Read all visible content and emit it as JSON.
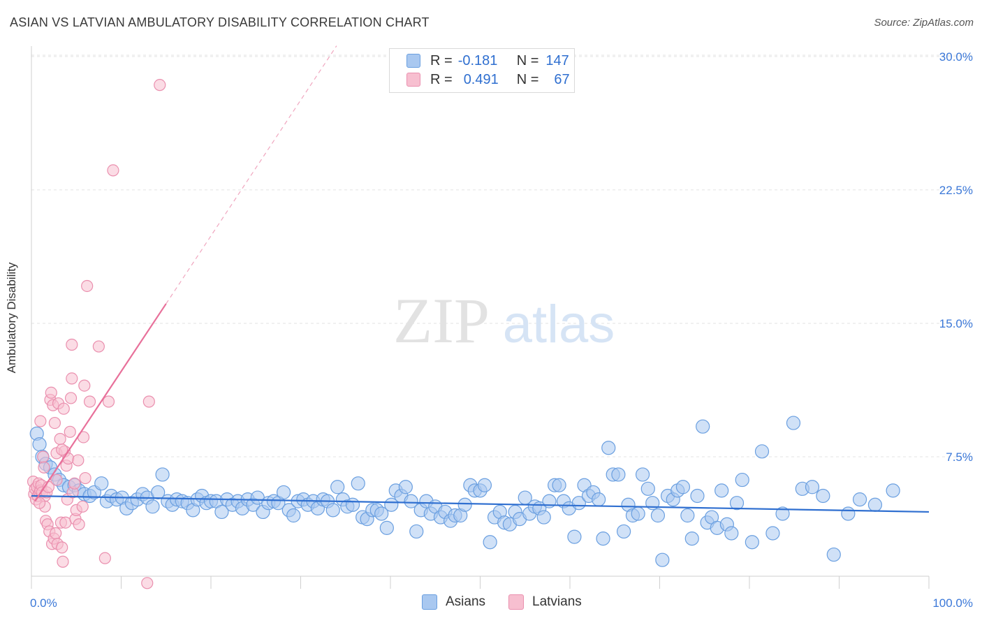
{
  "title": "ASIAN VS LATVIAN AMBULATORY DISABILITY CORRELATION CHART",
  "source": "Source: ZipAtlas.com",
  "watermark": {
    "zip": "ZIP",
    "atlas": "atlas"
  },
  "legend": {
    "rows": [
      {
        "r_label": "R =",
        "r_value": "-0.181",
        "n_label": "N =",
        "n_value": "147",
        "color": "#a9c8f0",
        "border": "#6a9fe0"
      },
      {
        "r_label": "R =",
        "r_value": "0.491",
        "n_label": "N =",
        "n_value": "67",
        "color": "#f7bfd0",
        "border": "#ea8fae"
      }
    ]
  },
  "bottom_legend": [
    {
      "label": "Asians",
      "color": "#a9c8f0",
      "border": "#6a9fe0"
    },
    {
      "label": "Latvians",
      "color": "#f7bfd0",
      "border": "#ea8fae"
    }
  ],
  "chart_data": {
    "type": "scatter",
    "title": "ASIAN VS LATVIAN AMBULATORY DISABILITY CORRELATION CHART",
    "xlabel": "",
    "ylabel": "Ambulatory Disability",
    "xlim": [
      0,
      100
    ],
    "ylim": [
      0,
      31
    ],
    "x_tick_labels": [
      "0.0%",
      "100.0%"
    ],
    "y_ticks": [
      7.5,
      15.0,
      22.5,
      30.0
    ],
    "y_tick_labels": [
      "7.5%",
      "15.0%",
      "22.5%",
      "30.0%"
    ],
    "grid": true,
    "legend_position": "top-center",
    "series": [
      {
        "name": "Asians",
        "color": "#6a9fe0",
        "fill": "#a9c8f0",
        "trend": {
          "x": [
            0,
            100
          ],
          "y": [
            5.3,
            4.4
          ]
        },
        "points": [
          [
            0.6,
            8.8
          ],
          [
            0.9,
            8.2
          ],
          [
            1.2,
            7.5
          ],
          [
            1.6,
            7.1
          ],
          [
            2.1,
            6.9
          ],
          [
            2.6,
            6.5
          ],
          [
            3.1,
            6.2
          ],
          [
            3.6,
            5.9
          ],
          [
            4.2,
            5.8
          ],
          [
            4.8,
            5.9
          ],
          [
            5.3,
            5.6
          ],
          [
            5.9,
            5.4
          ],
          [
            6.5,
            5.3
          ],
          [
            7.0,
            5.5
          ],
          [
            7.8,
            6.0
          ],
          [
            8.4,
            5.0
          ],
          [
            8.9,
            5.3
          ],
          [
            9.5,
            5.1
          ],
          [
            10.1,
            5.2
          ],
          [
            10.6,
            4.6
          ],
          [
            11.2,
            4.9
          ],
          [
            11.8,
            5.1
          ],
          [
            12.4,
            5.4
          ],
          [
            12.9,
            5.2
          ],
          [
            13.5,
            4.7
          ],
          [
            14.1,
            5.5
          ],
          [
            14.6,
            6.5
          ],
          [
            15.2,
            5.0
          ],
          [
            15.7,
            4.8
          ],
          [
            16.2,
            5.1
          ],
          [
            16.8,
            5.0
          ],
          [
            17.4,
            4.9
          ],
          [
            18.0,
            4.5
          ],
          [
            18.5,
            5.1
          ],
          [
            19.0,
            5.3
          ],
          [
            19.5,
            4.9
          ],
          [
            20.0,
            5.0
          ],
          [
            20.6,
            5.0
          ],
          [
            21.2,
            4.4
          ],
          [
            21.8,
            5.1
          ],
          [
            22.4,
            4.8
          ],
          [
            23.0,
            5.0
          ],
          [
            23.5,
            4.6
          ],
          [
            24.1,
            5.1
          ],
          [
            24.7,
            4.8
          ],
          [
            25.2,
            5.2
          ],
          [
            25.8,
            4.4
          ],
          [
            26.4,
            4.9
          ],
          [
            27.0,
            5.0
          ],
          [
            27.5,
            4.9
          ],
          [
            28.1,
            5.5
          ],
          [
            28.7,
            4.5
          ],
          [
            29.2,
            4.2
          ],
          [
            29.7,
            5.0
          ],
          [
            30.3,
            5.1
          ],
          [
            30.8,
            4.8
          ],
          [
            31.4,
            5.0
          ],
          [
            31.9,
            4.6
          ],
          [
            32.5,
            5.1
          ],
          [
            33.0,
            5.0
          ],
          [
            33.6,
            4.5
          ],
          [
            34.1,
            5.8
          ],
          [
            34.7,
            5.1
          ],
          [
            35.2,
            4.7
          ],
          [
            35.8,
            4.8
          ],
          [
            36.4,
            6.0
          ],
          [
            36.9,
            4.1
          ],
          [
            37.4,
            4.0
          ],
          [
            38.0,
            4.5
          ],
          [
            38.5,
            4.5
          ],
          [
            39.0,
            4.3
          ],
          [
            39.6,
            3.5
          ],
          [
            40.1,
            4.8
          ],
          [
            40.6,
            5.6
          ],
          [
            41.2,
            5.3
          ],
          [
            41.7,
            5.8
          ],
          [
            42.3,
            5.0
          ],
          [
            42.9,
            3.3
          ],
          [
            43.4,
            4.5
          ],
          [
            44.0,
            5.0
          ],
          [
            44.5,
            4.3
          ],
          [
            45.0,
            4.7
          ],
          [
            45.6,
            4.1
          ],
          [
            46.1,
            4.4
          ],
          [
            46.7,
            3.9
          ],
          [
            47.2,
            4.2
          ],
          [
            47.8,
            4.2
          ],
          [
            48.3,
            4.8
          ],
          [
            48.9,
            5.9
          ],
          [
            49.4,
            5.6
          ],
          [
            50.0,
            5.6
          ],
          [
            50.5,
            5.9
          ],
          [
            51.1,
            2.7
          ],
          [
            51.6,
            4.1
          ],
          [
            52.2,
            4.4
          ],
          [
            52.7,
            3.8
          ],
          [
            53.3,
            3.7
          ],
          [
            53.9,
            4.4
          ],
          [
            54.4,
            4.0
          ],
          [
            55.0,
            5.2
          ],
          [
            55.5,
            4.3
          ],
          [
            56.1,
            4.7
          ],
          [
            56.6,
            4.6
          ],
          [
            57.1,
            4.1
          ],
          [
            57.7,
            5.0
          ],
          [
            58.3,
            5.9
          ],
          [
            58.8,
            5.9
          ],
          [
            59.3,
            5.0
          ],
          [
            59.9,
            4.6
          ],
          [
            60.5,
            3.0
          ],
          [
            61.0,
            4.9
          ],
          [
            61.6,
            5.9
          ],
          [
            62.1,
            5.3
          ],
          [
            62.6,
            5.5
          ],
          [
            63.2,
            5.1
          ],
          [
            63.7,
            2.9
          ],
          [
            64.3,
            8.0
          ],
          [
            64.8,
            6.5
          ],
          [
            65.4,
            6.5
          ],
          [
            66.0,
            3.3
          ],
          [
            66.5,
            4.8
          ],
          [
            67.0,
            4.2
          ],
          [
            67.6,
            4.3
          ],
          [
            68.1,
            6.5
          ],
          [
            68.7,
            5.7
          ],
          [
            69.2,
            4.9
          ],
          [
            69.8,
            4.2
          ],
          [
            70.3,
            1.7
          ],
          [
            70.9,
            5.3
          ],
          [
            71.5,
            5.1
          ],
          [
            72.0,
            5.6
          ],
          [
            72.6,
            5.8
          ],
          [
            73.1,
            4.2
          ],
          [
            73.6,
            2.9
          ],
          [
            74.2,
            5.3
          ],
          [
            74.8,
            9.2
          ],
          [
            75.3,
            3.8
          ],
          [
            75.8,
            4.1
          ],
          [
            76.4,
            3.5
          ],
          [
            76.9,
            5.6
          ],
          [
            77.5,
            3.7
          ],
          [
            78.0,
            3.2
          ],
          [
            78.6,
            4.9
          ],
          [
            79.2,
            6.2
          ],
          [
            80.3,
            2.7
          ],
          [
            81.4,
            7.8
          ],
          [
            82.6,
            3.2
          ],
          [
            83.7,
            4.3
          ],
          [
            84.9,
            9.4
          ],
          [
            85.9,
            5.7
          ],
          [
            87.0,
            5.8
          ],
          [
            88.2,
            5.3
          ],
          [
            89.4,
            2.0
          ],
          [
            91.0,
            4.3
          ],
          [
            92.3,
            5.1
          ],
          [
            94.0,
            4.8
          ],
          [
            96.0,
            5.6
          ]
        ]
      },
      {
        "name": "Latvians",
        "color": "#ea8fae",
        "fill": "#f7bfd0",
        "trend": {
          "x": [
            0.4,
            15.0
          ],
          "y": [
            5.0,
            16.1
          ]
        },
        "trend_extension": {
          "x": [
            15.0,
            34.0
          ],
          "y": [
            16.1,
            30.6
          ]
        },
        "points": [
          [
            0.2,
            6.1
          ],
          [
            0.3,
            5.4
          ],
          [
            0.4,
            5.7
          ],
          [
            0.5,
            5.1
          ],
          [
            0.6,
            5.8
          ],
          [
            0.7,
            5.3
          ],
          [
            0.8,
            6.0
          ],
          [
            0.9,
            5.5
          ],
          [
            1.0,
            9.5
          ],
          [
            1.0,
            5.6
          ],
          [
            1.1,
            5.9
          ],
          [
            1.2,
            5.5
          ],
          [
            1.3,
            7.5
          ],
          [
            1.4,
            6.9
          ],
          [
            1.5,
            5.3
          ],
          [
            1.6,
            3.9
          ],
          [
            1.7,
            5.5
          ],
          [
            1.8,
            3.7
          ],
          [
            1.9,
            5.8
          ],
          [
            2.0,
            3.3
          ],
          [
            2.1,
            10.7
          ],
          [
            2.2,
            11.1
          ],
          [
            2.3,
            2.6
          ],
          [
            2.4,
            10.4
          ],
          [
            2.5,
            2.9
          ],
          [
            2.6,
            9.4
          ],
          [
            2.7,
            3.2
          ],
          [
            2.8,
            7.7
          ],
          [
            2.9,
            2.6
          ],
          [
            3.0,
            10.5
          ],
          [
            3.2,
            8.5
          ],
          [
            3.3,
            3.8
          ],
          [
            3.4,
            2.4
          ],
          [
            3.5,
            1.6
          ],
          [
            3.6,
            10.2
          ],
          [
            3.7,
            7.8
          ],
          [
            3.8,
            3.8
          ],
          [
            3.9,
            7.0
          ],
          [
            4.0,
            5.1
          ],
          [
            4.1,
            7.4
          ],
          [
            4.3,
            8.9
          ],
          [
            4.4,
            10.8
          ],
          [
            4.5,
            11.9
          ],
          [
            4.6,
            5.5
          ],
          [
            4.8,
            6.0
          ],
          [
            4.9,
            4.0
          ],
          [
            5.0,
            4.5
          ],
          [
            5.2,
            7.3
          ],
          [
            5.3,
            3.7
          ],
          [
            5.7,
            4.7
          ],
          [
            5.8,
            8.6
          ],
          [
            5.9,
            11.5
          ],
          [
            6.2,
            17.1
          ],
          [
            6.5,
            10.6
          ],
          [
            7.5,
            13.7
          ],
          [
            8.2,
            1.8
          ],
          [
            8.6,
            10.6
          ],
          [
            9.1,
            23.6
          ],
          [
            4.5,
            13.8
          ],
          [
            13.1,
            10.6
          ],
          [
            12.9,
            0.4
          ],
          [
            14.3,
            28.4
          ],
          [
            3.4,
            7.9
          ],
          [
            2.8,
            6.2
          ],
          [
            1.5,
            4.7
          ],
          [
            0.9,
            4.9
          ],
          [
            6.0,
            6.3
          ]
        ]
      }
    ]
  }
}
